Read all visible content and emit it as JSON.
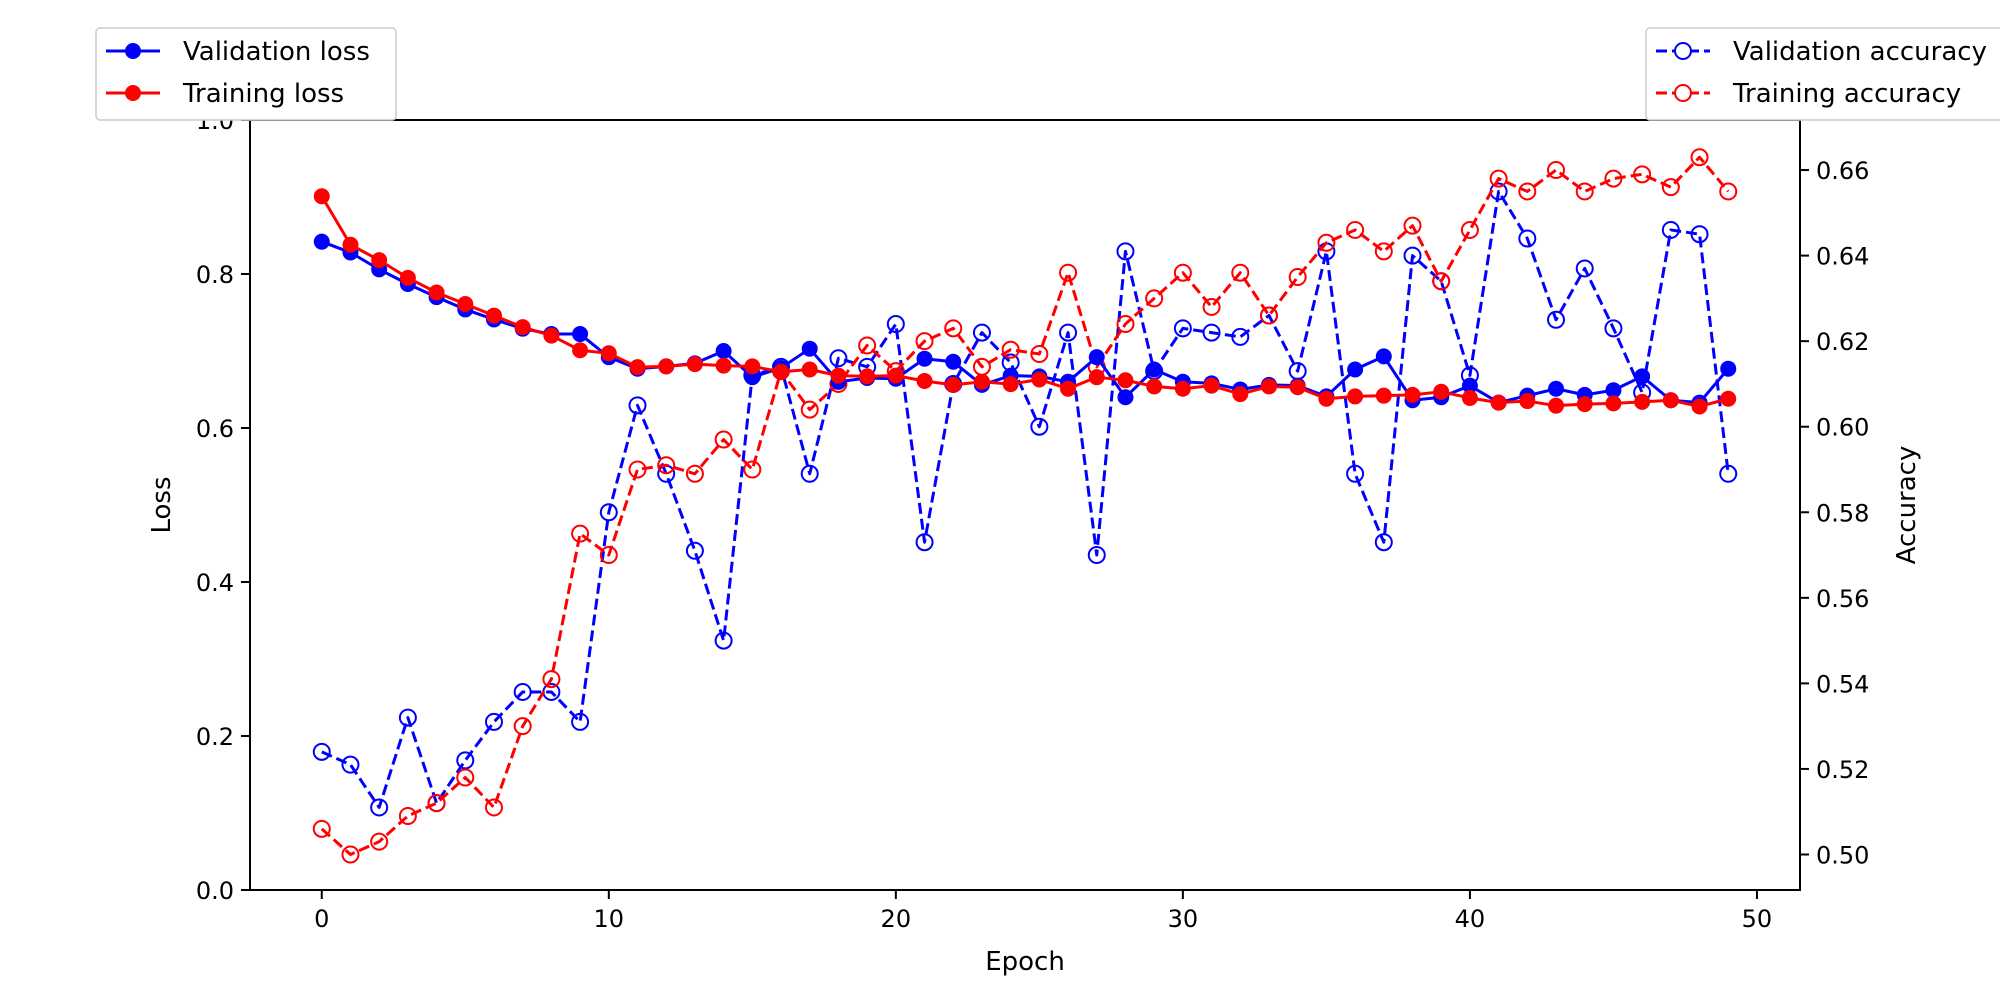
{
  "chart_data": {
    "type": "line",
    "xlabel": "Epoch",
    "ylabel_left": "Loss",
    "ylabel_right": "Accuracy",
    "xlim": [
      -2.5,
      51.5
    ],
    "ylim_left": [
      0.0,
      1.0
    ],
    "ylim_right": [
      0.4917,
      0.6717
    ],
    "x_ticks": [
      0,
      10,
      20,
      30,
      40,
      50
    ],
    "y_ticks_left": [
      0.0,
      0.2,
      0.4,
      0.6,
      0.8,
      1.0
    ],
    "y_ticks_right": [
      0.5,
      0.52,
      0.54,
      0.56,
      0.58,
      0.6,
      0.62,
      0.64,
      0.66
    ],
    "y_ticks_left_labels": [
      "0.0",
      "0.2",
      "0.4",
      "0.6",
      "0.8",
      "1.0"
    ],
    "y_ticks_right_labels": [
      "0.50",
      "0.52",
      "0.54",
      "0.56",
      "0.58",
      "0.60",
      "0.62",
      "0.64",
      "0.66"
    ],
    "grid": false,
    "legends": [
      {
        "placement": "top-left",
        "entries": [
          "Validation loss",
          "Training loss"
        ]
      },
      {
        "placement": "top-right",
        "entries": [
          "Validation accuracy",
          "Training accuracy"
        ]
      }
    ],
    "series": [
      {
        "name": "Validation loss",
        "axis": "left",
        "style": "solid-filled",
        "color": "#0000ff",
        "values": [
          0.842,
          0.828,
          0.806,
          0.787,
          0.77,
          0.754,
          0.741,
          0.729,
          0.722,
          0.722,
          0.692,
          0.677,
          0.68,
          0.684,
          0.7,
          0.666,
          0.678,
          0.703,
          0.66,
          0.665,
          0.664,
          0.69,
          0.686,
          0.656,
          0.668,
          0.667,
          0.66,
          0.692,
          0.64,
          0.676,
          0.66,
          0.658,
          0.65,
          0.656,
          0.655,
          0.641,
          0.676,
          0.693,
          0.636,
          0.64,
          0.655,
          0.633,
          0.642,
          0.651,
          0.643,
          0.649,
          0.667,
          0.636,
          0.633,
          0.677
        ]
      },
      {
        "name": "Training loss",
        "axis": "left",
        "style": "solid-filled",
        "color": "#ff0000",
        "values": [
          0.901,
          0.838,
          0.818,
          0.795,
          0.776,
          0.761,
          0.746,
          0.731,
          0.72,
          0.701,
          0.697,
          0.679,
          0.68,
          0.683,
          0.681,
          0.68,
          0.673,
          0.676,
          0.668,
          0.667,
          0.668,
          0.661,
          0.656,
          0.66,
          0.657,
          0.663,
          0.651,
          0.666,
          0.662,
          0.654,
          0.651,
          0.655,
          0.644,
          0.654,
          0.653,
          0.638,
          0.641,
          0.642,
          0.643,
          0.647,
          0.639,
          0.633,
          0.635,
          0.629,
          0.631,
          0.632,
          0.634,
          0.636,
          0.628,
          0.638
        ]
      },
      {
        "name": "Validation accuracy",
        "axis": "right",
        "style": "dashed-hollow",
        "color": "#0000ff",
        "values": [
          0.524,
          0.521,
          0.511,
          0.532,
          0.512,
          0.522,
          0.531,
          0.538,
          0.538,
          0.531,
          0.58,
          0.605,
          0.589,
          0.571,
          0.55,
          0.612,
          0.614,
          0.589,
          0.616,
          0.614,
          0.624,
          0.573,
          0.61,
          0.622,
          0.615,
          0.6,
          0.622,
          0.57,
          0.641,
          0.613,
          0.623,
          0.622,
          0.621,
          0.626,
          0.613,
          0.641,
          0.589,
          0.573,
          0.64,
          0.634,
          0.612,
          0.655,
          0.644,
          0.625,
          0.637,
          0.623,
          0.608,
          0.646,
          0.645,
          0.589
        ]
      },
      {
        "name": "Training accuracy",
        "axis": "right",
        "style": "dashed-hollow",
        "color": "#ff0000",
        "values": [
          0.506,
          0.5,
          0.503,
          0.509,
          0.512,
          0.518,
          0.511,
          0.53,
          0.541,
          0.575,
          0.57,
          0.59,
          0.591,
          0.589,
          0.597,
          0.59,
          0.613,
          0.604,
          0.61,
          0.619,
          0.613,
          0.62,
          0.623,
          0.614,
          0.618,
          0.617,
          0.636,
          0.614,
          0.624,
          0.63,
          0.636,
          0.628,
          0.636,
          0.626,
          0.635,
          0.643,
          0.646,
          0.641,
          0.647,
          0.634,
          0.646,
          0.658,
          0.655,
          0.66,
          0.655,
          0.658,
          0.659,
          0.656,
          0.663,
          0.655
        ]
      }
    ]
  }
}
